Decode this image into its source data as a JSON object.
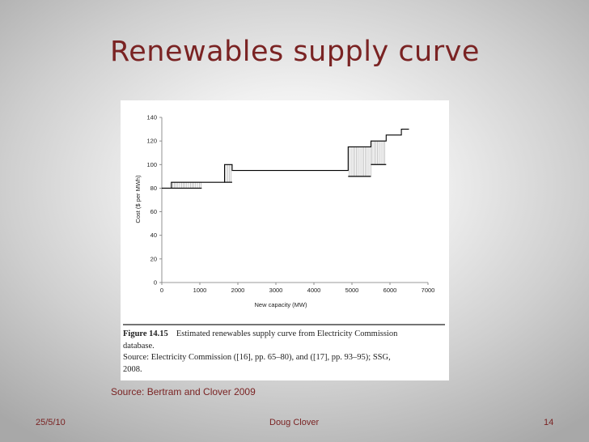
{
  "slide": {
    "title": "Renewables supply curve",
    "source_note": "Source: Bertram and Clover 2009",
    "footer_date": "25/5/10",
    "footer_author": "Doug Clover",
    "footer_page": "14"
  },
  "caption": {
    "figure_number": "Figure 14.15",
    "line1_rest": "Estimated renewables supply curve from Electricity Commission",
    "line2": "database.",
    "line3": "Source: Electricity Commission ([16], pp. 65–80), and ([17], pp. 93–95); SSG,",
    "line4": "2008."
  },
  "chart_data": {
    "type": "line",
    "title": "",
    "xlabel": "New capacity (MW)",
    "ylabel": "Cost ($ per MWh)",
    "xlim": [
      0,
      7000
    ],
    "ylim": [
      0,
      140
    ],
    "xticks": [
      0,
      1000,
      2000,
      3000,
      4000,
      5000,
      6000,
      7000
    ],
    "yticks": [
      0,
      20,
      40,
      60,
      80,
      100,
      120,
      140
    ],
    "grid": false,
    "legend": "none",
    "series": [
      {
        "style": "step",
        "points": [
          [
            0,
            80
          ],
          [
            250,
            80
          ],
          [
            250,
            85
          ],
          [
            1050,
            85
          ],
          [
            1050,
            85
          ],
          [
            1650,
            85
          ],
          [
            1650,
            100
          ],
          [
            1850,
            100
          ],
          [
            1850,
            95
          ],
          [
            4900,
            95
          ],
          [
            4900,
            115
          ],
          [
            5500,
            115
          ],
          [
            5500,
            120
          ],
          [
            5900,
            120
          ],
          [
            5900,
            125
          ],
          [
            6300,
            125
          ],
          [
            6300,
            130
          ],
          [
            6500,
            130
          ]
        ]
      }
    ],
    "range_bands": [
      {
        "x0": 250,
        "x1": 1050,
        "low": 80,
        "high": 85
      },
      {
        "x0": 1650,
        "x1": 1850,
        "low": 85,
        "high": 100
      },
      {
        "x0": 4900,
        "x1": 5500,
        "low": 90,
        "high": 115
      },
      {
        "x0": 5500,
        "x1": 5900,
        "low": 100,
        "high": 120
      }
    ],
    "colors": {
      "line": "#000000",
      "axis": "#777777",
      "hatch": "#8a8a8a"
    }
  }
}
